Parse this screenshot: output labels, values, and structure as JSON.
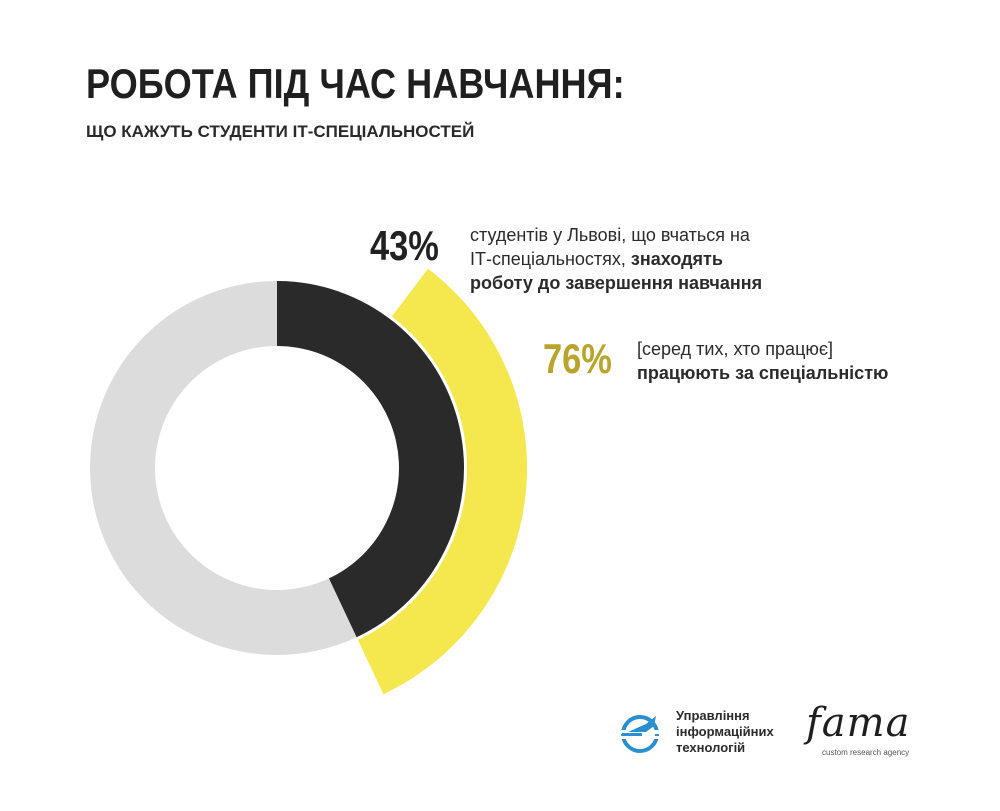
{
  "header": {
    "title": "РОБОТА ПІД ЧАС НАВЧАННЯ:",
    "subtitle": "ЩО КАЖУТЬ СТУДЕНТИ ІТ-СПЕЦІАЛЬНОСТЕЙ"
  },
  "chart_data": {
    "type": "pie",
    "variant": "nested-donut",
    "title": "",
    "series": [
      {
        "name": "",
        "label": "43%",
        "value": 43,
        "color": "#2a2a2a",
        "remainder_color": "#dcdcdc"
      },
      {
        "name": "",
        "label": "76%",
        "value": 76,
        "color": "#f5e74e"
      }
    ],
    "annotations": [
      {
        "value_text": "43%",
        "color": "#222222",
        "text_plain": "студентів у Львові, що вчаться на ІТ-спеціальностях,",
        "text_bold": "знаходять роботу до завершення навчання"
      },
      {
        "value_text": "76%",
        "color": "#b9a42c",
        "text_plain": "[серед тих, хто працює]",
        "text_bold": "працюють за спеціальністю"
      }
    ]
  },
  "logos": {
    "uit": {
      "line1": "Управління",
      "line2": "інформаційних",
      "line3": "технологій",
      "color": "#2a8fd0"
    },
    "fama": {
      "word": "fama",
      "tagline": "custom research agency"
    }
  }
}
